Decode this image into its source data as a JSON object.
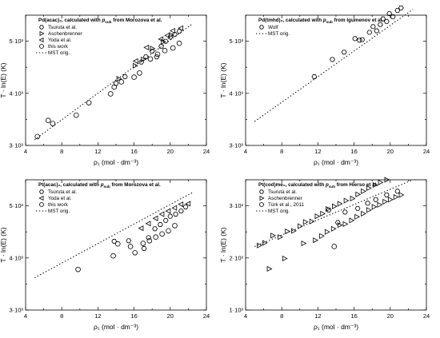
{
  "chart_data": [
    {
      "type": "scatter",
      "title": "Pd(acac)₂, calculated with p_sub from Morozova et al.",
      "title_main": "Pd(acac)₂, calculated with ",
      "title_p": "p",
      "title_sub": "sub",
      "title_tail": " from Morozova et al.",
      "xlabel": "ρ₁ (mol · dm⁻³)",
      "ylabel": "T · ln(E) (K)",
      "xlim": [
        4,
        24
      ],
      "ylim": [
        3000,
        5500
      ],
      "xticks": [
        "4",
        "8",
        "12",
        "16",
        "20",
        "24"
      ],
      "yticks": [
        {
          "value": 3000,
          "label": "3·10³"
        },
        {
          "value": 4000,
          "label": "4·10³"
        },
        {
          "value": 5000,
          "label": "5·10³"
        }
      ],
      "legend_position": "top-left",
      "fit_line": {
        "name": "MST orig.",
        "x": [
          5.0,
          22.5
        ],
        "y": [
          3110,
          5340
        ]
      },
      "series": [
        {
          "name": "Tsuruta et al.",
          "marker": "hexagon",
          "points": [
            [
              14.0,
              4190
            ],
            [
              15.0,
              4320
            ],
            [
              16.8,
              4600
            ],
            [
              17.3,
              4700
            ],
            [
              18.0,
              4810
            ],
            [
              18.5,
              4700
            ],
            [
              19.0,
              4900
            ],
            [
              19.5,
              5000
            ],
            [
              20.0,
              5080
            ],
            [
              20.5,
              5130
            ],
            [
              21.0,
              5190
            ]
          ]
        },
        {
          "name": "Aschenbrenner",
          "marker": "triangle-right",
          "points": [
            [
              14.3,
              4280
            ],
            [
              16.1,
              4530
            ],
            [
              17.0,
              4650
            ],
            [
              18.0,
              4860
            ],
            [
              19.2,
              4990
            ],
            [
              20.1,
              5120
            ]
          ]
        },
        {
          "name": "Yoda et al.",
          "marker": "triangle-left",
          "points": [
            [
              16.2,
              4620
            ],
            [
              17.4,
              4880
            ],
            [
              19.0,
              5040
            ],
            [
              19.7,
              5110
            ],
            [
              20.3,
              5200
            ],
            [
              21.2,
              5250
            ]
          ]
        },
        {
          "name": "this work",
          "marker": "circle",
          "points": [
            [
              5.3,
              3170
            ],
            [
              6.5,
              3480
            ],
            [
              7.0,
              3420
            ],
            [
              9.6,
              3580
            ],
            [
              11.0,
              3820
            ],
            [
              13.4,
              3990
            ],
            [
              13.8,
              4120
            ],
            [
              14.6,
              4220
            ],
            [
              16.0,
              4310
            ],
            [
              16.6,
              4390
            ],
            [
              17.8,
              4660
            ],
            [
              18.6,
              4750
            ],
            [
              19.4,
              4820
            ],
            [
              20.3,
              4870
            ],
            [
              21.0,
              4960
            ]
          ]
        }
      ]
    },
    {
      "type": "scatter",
      "title": "Pd(tmhd)₂, calculated with p_sub from Igumenov et al.",
      "title_main": "Pd(tmhd)₂, calculated with ",
      "title_p": "p",
      "title_sub": "sub",
      "title_tail": " from Igumenov et al.",
      "xlabel": "ρ₁ (mol · dm⁻³)",
      "ylabel": "T · ln(E) (K)",
      "xlim": [
        4,
        24
      ],
      "ylim": [
        3000,
        5500
      ],
      "xticks": [
        "4",
        "8",
        "12",
        "16",
        "20",
        "24"
      ],
      "yticks": [
        {
          "value": 3000,
          "label": "3·10³"
        },
        {
          "value": 4000,
          "label": "4·10³"
        },
        {
          "value": 5000,
          "label": "5·10³"
        }
      ],
      "legend_position": "top-left",
      "fit_line": {
        "name": "MST orig.",
        "x": [
          5.0,
          22.5
        ],
        "y": [
          3460,
          5610
        ]
      },
      "series": [
        {
          "name": "Wolf",
          "marker": "hexagon",
          "points": [
            [
              11.6,
              4320
            ],
            [
              13.6,
              4650
            ],
            [
              14.9,
              4790
            ],
            [
              16.1,
              5050
            ],
            [
              16.6,
              5020
            ],
            [
              16.9,
              5030
            ],
            [
              17.7,
              5170
            ],
            [
              18.1,
              5280
            ],
            [
              18.5,
              5200
            ],
            [
              18.9,
              5320
            ],
            [
              19.2,
              5430
            ],
            [
              19.6,
              5380
            ],
            [
              19.9,
              5530
            ],
            [
              20.3,
              5470
            ],
            [
              20.8,
              5590
            ],
            [
              21.2,
              5640
            ]
          ]
        }
      ]
    },
    {
      "type": "scatter",
      "title": "Pt(acac)₂, calculated with p_sub from Morozova et al.",
      "title_main": "Pt(acac)₂, calculated with ",
      "title_p": "p",
      "title_sub": "sub",
      "title_tail": " from Morozova et al.",
      "xlabel": "ρ₁ (mol · dm⁻³)",
      "ylabel": "T · ln(E) (K)",
      "xlim": [
        4,
        24
      ],
      "ylim": [
        3000,
        5500
      ],
      "xticks": [
        "4",
        "8",
        "12",
        "16",
        "20",
        "24"
      ],
      "yticks": [
        {
          "value": 3000,
          "label": "3·10³"
        },
        {
          "value": 4000,
          "label": "4·10³"
        },
        {
          "value": 5000,
          "label": "5·10³"
        }
      ],
      "legend_position": "top-left",
      "fit_line": {
        "name": "MST orig.",
        "x": [
          5.0,
          22.5
        ],
        "y": [
          3620,
          5260
        ]
      },
      "series": [
        {
          "name": "Tsuruta et al.",
          "marker": "hexagon",
          "points": [
            [
              13.8,
              4320
            ],
            [
              15.4,
              4330
            ],
            [
              17.1,
              4180
            ],
            [
              17.6,
              4390
            ],
            [
              18.3,
              4560
            ],
            [
              18.9,
              4640
            ],
            [
              19.5,
              4720
            ],
            [
              20.0,
              4800
            ],
            [
              20.6,
              4840
            ],
            [
              21.2,
              4900
            ],
            [
              21.7,
              4980
            ]
          ]
        },
        {
          "name": "Yoda et al.",
          "marker": "triangle-left",
          "points": [
            [
              16.8,
              4570
            ],
            [
              17.6,
              4660
            ],
            [
              18.4,
              4760
            ],
            [
              19.1,
              4840
            ],
            [
              19.8,
              4900
            ],
            [
              20.5,
              4960
            ],
            [
              21.2,
              5030
            ],
            [
              22.0,
              5040
            ]
          ]
        },
        {
          "name": "this work",
          "marker": "circle",
          "points": [
            [
              9.8,
              3780
            ],
            [
              13.7,
              4040
            ],
            [
              14.2,
              4270
            ],
            [
              15.6,
              4220
            ],
            [
              16.1,
              4100
            ],
            [
              17.0,
              4280
            ],
            [
              17.7,
              4330
            ],
            [
              18.4,
              4400
            ],
            [
              19.1,
              4460
            ],
            [
              19.8,
              4520
            ],
            [
              20.5,
              4620
            ]
          ]
        }
      ]
    },
    {
      "type": "scatter",
      "title": "Pt(cod)me₂, calculated with p_sub from Hierso et al.",
      "title_main": "Pt(cod)me₂, calculated with ",
      "title_p": "p",
      "title_sub": "sub",
      "title_tail": " from Hierso et al.",
      "xlabel": "ρ₁ (mol · dm⁻³)",
      "ylabel": "T · ln(E) (K)",
      "xlim": [
        4,
        24
      ],
      "ylim": [
        1000,
        3500
      ],
      "xticks": [
        "4",
        "8",
        "12",
        "16",
        "20",
        "24"
      ],
      "yticks": [
        {
          "value": 1000,
          "label": "1·10³"
        },
        {
          "value": 2000,
          "label": "2·10³"
        },
        {
          "value": 3000,
          "label": "3·10³"
        }
      ],
      "legend_position": "top-left",
      "fit_line": {
        "name": "MST orig.",
        "x": [
          5.0,
          22.5
        ],
        "y": [
          2220,
          3500
        ]
      },
      "series": [
        {
          "name": "Tsuruta et al.",
          "marker": "hexagon",
          "points": [
            [
              13.2,
              2920
            ],
            [
              14.2,
              2680
            ],
            [
              15.0,
              2880
            ],
            [
              16.4,
              2950
            ],
            [
              17.5,
              3050
            ],
            [
              18.4,
              3120
            ],
            [
              19.6,
              3210
            ],
            [
              20.8,
              3280
            ]
          ]
        },
        {
          "name": "Aschenbrenner",
          "marker": "triangle-right",
          "points": [
            [
              5.5,
              2240
            ],
            [
              6.1,
              2290
            ],
            [
              7.0,
              2430
            ],
            [
              7.8,
              2400
            ],
            [
              8.6,
              2510
            ],
            [
              9.3,
              2520
            ],
            [
              10.0,
              2610
            ],
            [
              10.6,
              2690
            ],
            [
              11.3,
              2700
            ],
            [
              11.9,
              2800
            ],
            [
              12.5,
              2850
            ],
            [
              13.1,
              2940
            ],
            [
              13.8,
              2990
            ],
            [
              14.4,
              3040
            ],
            [
              15.1,
              3100
            ],
            [
              15.8,
              3140
            ],
            [
              16.4,
              3220
            ],
            [
              17.0,
              3280
            ],
            [
              17.6,
              3340
            ],
            [
              18.3,
              3400
            ],
            [
              18.9,
              3450
            ],
            [
              19.6,
              3500
            ],
            [
              6.6,
              1790
            ],
            [
              8.3,
              1990
            ],
            [
              10.4,
              2280
            ],
            [
              11.7,
              2340
            ],
            [
              12.4,
              2420
            ],
            [
              13.0,
              2500
            ],
            [
              13.7,
              2560
            ],
            [
              14.4,
              2630
            ],
            [
              15.0,
              2650
            ],
            [
              15.7,
              2720
            ],
            [
              16.3,
              2790
            ],
            [
              17.0,
              2850
            ],
            [
              17.6,
              2920
            ],
            [
              18.2,
              2980
            ],
            [
              18.8,
              3020
            ],
            [
              19.4,
              3080
            ],
            [
              20.0,
              3120
            ],
            [
              20.6,
              3170
            ],
            [
              21.2,
              3210
            ]
          ]
        },
        {
          "name": "Türk et al., 2011",
          "marker": "circle",
          "points": [
            [
              13.8,
              2220
            ]
          ]
        }
      ]
    }
  ]
}
